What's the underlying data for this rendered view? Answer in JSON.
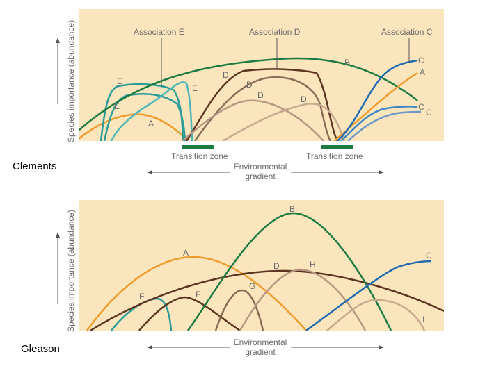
{
  "labels": {
    "clements": "Clements",
    "gleason": "Gleason"
  },
  "colors": {
    "panel_bg": "#fbe5bd",
    "green": "#1a7a3f",
    "teal": "#2a9b98",
    "orange": "#ef9b2b",
    "dark_brown": "#5c3420",
    "tan": "#b79682",
    "light_tan": "#c6a88c",
    "mid_brown": "#8a6a55",
    "blue": "#1f6ab3",
    "light_blue": "#6b98c6",
    "axis_text": "#6b6b6b"
  },
  "top_panel": {
    "y_axis_label": "Species importance (abundance)",
    "associations": [
      {
        "id": "assoc-e",
        "label": "Association E"
      },
      {
        "id": "assoc-d",
        "label": "Association D"
      },
      {
        "id": "assoc-c",
        "label": "Association C"
      }
    ],
    "transition_zones": [
      "Transition zone",
      "Transition zone"
    ],
    "gradient_label": [
      "Environmental",
      "gradient"
    ],
    "curve_labels": [
      "E",
      "E",
      "E",
      "A",
      "D",
      "D",
      "D",
      "D",
      "B",
      "C",
      "A",
      "C",
      "C"
    ]
  },
  "bottom_panel": {
    "y_axis_label": "Species importance (abundance)",
    "gradient_label": [
      "Environmental",
      "gradient"
    ],
    "curve_labels": [
      "B",
      "A",
      "C",
      "D",
      "H",
      "G",
      "E",
      "F",
      "I"
    ]
  }
}
